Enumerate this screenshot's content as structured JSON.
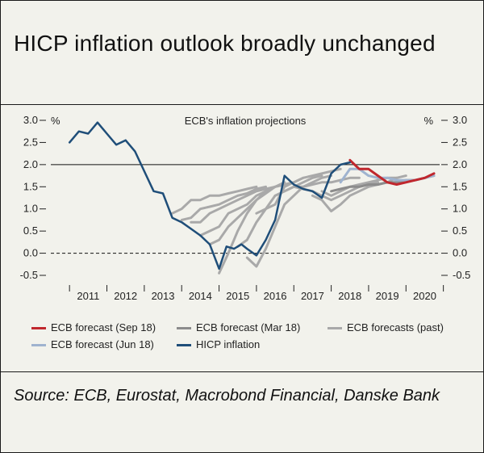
{
  "header": {
    "title": "HICP inflation outlook broadly unchanged"
  },
  "source": {
    "text": "Source: ECB, Eurostat, Macrobond Financial, Danske Bank"
  },
  "legend": {
    "items": [
      {
        "label": "ECB forecast (Sep 18)",
        "color": "#c0272d"
      },
      {
        "label": "ECB forecast (Mar 18)",
        "color": "#8c8c8c"
      },
      {
        "label": "ECB forecasts (past)",
        "color": "#a9a9a9"
      },
      {
        "label": "ECB forecast (Jun 18)",
        "color": "#9fb3cf"
      },
      {
        "label": "HICP inflation",
        "color": "#1f4e79"
      }
    ]
  },
  "chart_data": {
    "type": "line",
    "title": "ECB's inflation projections",
    "ylabel_left": "%",
    "ylabel_right": "%",
    "ylim": [
      -0.5,
      3.0
    ],
    "yticks": [
      "3.0",
      "2.5",
      "2.0",
      "1.5",
      "1.0",
      "0.5",
      "0.0",
      "-0.5"
    ],
    "xlim": [
      2010.5,
      2020.9
    ],
    "xticks": [
      "2011",
      "2012",
      "2013",
      "2014",
      "2015",
      "2016",
      "2017",
      "2018",
      "2019",
      "2020"
    ],
    "reference_lines": [
      {
        "y": 2.0,
        "style": "solid"
      },
      {
        "y": 0.0,
        "style": "dashed"
      }
    ],
    "colors": {
      "hicp": "#1f4e79",
      "sep18": "#c0272d",
      "jun18": "#9fb3cf",
      "mar18": "#8c8c8c",
      "past": "#a9a9a9"
    },
    "series": [
      {
        "name": "HICP inflation",
        "key": "hicp",
        "x": [
          2011.0,
          2011.25,
          2011.5,
          2011.75,
          2012.0,
          2012.25,
          2012.5,
          2012.75,
          2013.0,
          2013.25,
          2013.5,
          2013.75,
          2014.0,
          2014.25,
          2014.5,
          2014.75,
          2015.0,
          2015.2,
          2015.4,
          2015.6,
          2015.75,
          2016.0,
          2016.25,
          2016.5,
          2016.75,
          2017.0,
          2017.25,
          2017.5,
          2017.75,
          2018.0,
          2018.25,
          2018.5
        ],
        "y": [
          2.5,
          2.75,
          2.7,
          2.95,
          2.7,
          2.45,
          2.55,
          2.3,
          1.85,
          1.4,
          1.35,
          0.8,
          0.7,
          0.55,
          0.4,
          0.2,
          -0.35,
          0.15,
          0.1,
          0.2,
          0.1,
          -0.05,
          0.3,
          0.75,
          1.75,
          1.55,
          1.45,
          1.4,
          1.25,
          1.8,
          2.0,
          2.05
        ]
      },
      {
        "name": "ECB forecast (Sep 18)",
        "key": "sep18",
        "x": [
          2018.5,
          2018.75,
          2019.0,
          2019.25,
          2019.5,
          2019.75,
          2020.0,
          2020.25,
          2020.5,
          2020.75
        ],
        "y": [
          2.1,
          1.9,
          1.9,
          1.75,
          1.6,
          1.55,
          1.6,
          1.65,
          1.7,
          1.8
        ]
      },
      {
        "name": "ECB forecast (Jun 18)",
        "key": "jun18",
        "x": [
          2018.25,
          2018.5,
          2018.75,
          2019.0,
          2019.25,
          2019.5,
          2019.75,
          2020.0,
          2020.25,
          2020.5,
          2020.75
        ],
        "y": [
          1.6,
          1.9,
          1.9,
          1.75,
          1.7,
          1.7,
          1.65,
          1.65,
          1.65,
          1.7,
          1.75
        ]
      },
      {
        "name": "ECB forecast (Mar 18)",
        "key": "mar18",
        "x": [
          2018.0,
          2018.25,
          2018.5,
          2018.75,
          2019.0,
          2019.25,
          2019.5,
          2019.75,
          2020.0,
          2020.25,
          2020.5,
          2020.75
        ],
        "y": [
          1.4,
          1.45,
          1.5,
          1.5,
          1.55,
          1.55,
          1.6,
          1.6,
          1.65,
          1.65,
          1.7,
          1.75
        ]
      },
      {
        "name": "ECB forecasts (past)",
        "key": "past",
        "x": [
          2013.75,
          2014.0,
          2014.25,
          2014.5,
          2014.75,
          2015.0,
          2015.25,
          2015.5,
          2015.75,
          2016.0
        ],
        "y": [
          0.9,
          1.0,
          1.2,
          1.2,
          1.3,
          1.3,
          1.35,
          1.4,
          1.45,
          1.5
        ]
      },
      {
        "name": "ECB forecasts (past)",
        "key": "past",
        "x": [
          2014.0,
          2014.25,
          2014.5,
          2014.75,
          2015.0,
          2015.25,
          2015.5,
          2015.75,
          2016.0,
          2016.25
        ],
        "y": [
          0.75,
          0.8,
          1.0,
          1.05,
          1.1,
          1.2,
          1.3,
          1.35,
          1.45,
          1.5
        ]
      },
      {
        "name": "ECB forecasts (past)",
        "key": "past",
        "x": [
          2014.25,
          2014.5,
          2014.75,
          2015.0,
          2015.25,
          2015.5,
          2015.75,
          2016.0,
          2016.25,
          2016.5
        ],
        "y": [
          0.7,
          0.7,
          0.9,
          1.0,
          1.1,
          1.2,
          1.3,
          1.4,
          1.45,
          1.5
        ]
      },
      {
        "name": "ECB forecasts (past)",
        "key": "past",
        "x": [
          2014.5,
          2014.75,
          2015.0,
          2015.25,
          2015.5,
          2015.75,
          2016.0,
          2016.25,
          2016.5,
          2016.75
        ],
        "y": [
          0.4,
          0.5,
          0.6,
          0.9,
          1.0,
          1.1,
          1.3,
          1.4,
          1.5,
          1.6
        ]
      },
      {
        "name": "ECB forecasts (past)",
        "key": "past",
        "x": [
          2014.75,
          2015.0,
          2015.25,
          2015.5,
          2015.75,
          2016.0,
          2016.25,
          2016.5,
          2016.75,
          2017.0
        ],
        "y": [
          0.2,
          0.3,
          0.6,
          0.8,
          1.0,
          1.2,
          1.35,
          1.5,
          1.55,
          1.6
        ]
      },
      {
        "name": "ECB forecasts (past)",
        "key": "past",
        "x": [
          2015.0,
          2015.25,
          2015.5,
          2015.75,
          2016.0,
          2016.25,
          2016.5,
          2016.75,
          2017.0,
          2017.25
        ],
        "y": [
          -0.45,
          0.0,
          0.5,
          0.9,
          1.2,
          1.4,
          1.5,
          1.55,
          1.6,
          1.7
        ]
      },
      {
        "name": "ECB forecasts (past)",
        "key": "past",
        "x": [
          2015.5,
          2015.75,
          2016.0,
          2016.25,
          2016.5,
          2016.75,
          2017.0,
          2017.25,
          2017.5,
          2017.75
        ],
        "y": [
          0.15,
          0.3,
          0.7,
          1.0,
          1.3,
          1.4,
          1.5,
          1.6,
          1.7,
          1.75
        ]
      },
      {
        "name": "ECB forecasts (past)",
        "key": "past",
        "x": [
          2015.75,
          2016.0,
          2016.25,
          2016.5,
          2016.75,
          2017.0,
          2017.25,
          2017.5,
          2017.75,
          2018.0
        ],
        "y": [
          -0.1,
          -0.3,
          0.1,
          0.6,
          1.1,
          1.3,
          1.5,
          1.6,
          1.7,
          1.75
        ]
      },
      {
        "name": "ECB forecasts (past)",
        "key": "past",
        "x": [
          2016.0,
          2016.25,
          2016.5,
          2016.75,
          2017.0,
          2017.25,
          2017.5,
          2017.75,
          2018.0,
          2018.25
        ],
        "y": [
          0.9,
          1.0,
          1.1,
          1.5,
          1.6,
          1.7,
          1.75,
          1.8,
          1.85,
          1.9
        ]
      },
      {
        "name": "ECB forecasts (past)",
        "key": "past",
        "x": [
          2016.5,
          2016.75,
          2017.0,
          2017.25,
          2017.5,
          2017.75,
          2018.0,
          2018.25,
          2018.5,
          2018.75
        ],
        "y": [
          1.3,
          1.4,
          1.5,
          1.5,
          1.55,
          1.6,
          1.6,
          1.65,
          1.7,
          1.7
        ]
      },
      {
        "name": "ECB forecasts (past)",
        "key": "past",
        "x": [
          2017.0,
          2017.25,
          2017.5,
          2017.75,
          2018.0,
          2018.25,
          2018.5,
          2018.75,
          2019.0,
          2019.25
        ],
        "y": [
          1.5,
          1.45,
          1.4,
          1.3,
          1.2,
          1.3,
          1.4,
          1.5,
          1.55,
          1.6
        ]
      },
      {
        "name": "ECB forecasts (past)",
        "key": "past",
        "x": [
          2017.5,
          2017.75,
          2018.0,
          2018.25,
          2018.5,
          2018.75,
          2019.0,
          2019.25,
          2019.5,
          2019.75
        ],
        "y": [
          1.3,
          1.2,
          0.95,
          1.1,
          1.3,
          1.4,
          1.5,
          1.55,
          1.6,
          1.7
        ]
      },
      {
        "name": "ECB forecasts (past)",
        "key": "past",
        "x": [
          2017.75,
          2018.0,
          2018.25,
          2018.5,
          2018.75,
          2019.0,
          2019.25,
          2019.5,
          2019.75,
          2020.0
        ],
        "y": [
          1.4,
          1.3,
          1.4,
          1.5,
          1.55,
          1.6,
          1.65,
          1.7,
          1.7,
          1.75
        ]
      }
    ]
  }
}
